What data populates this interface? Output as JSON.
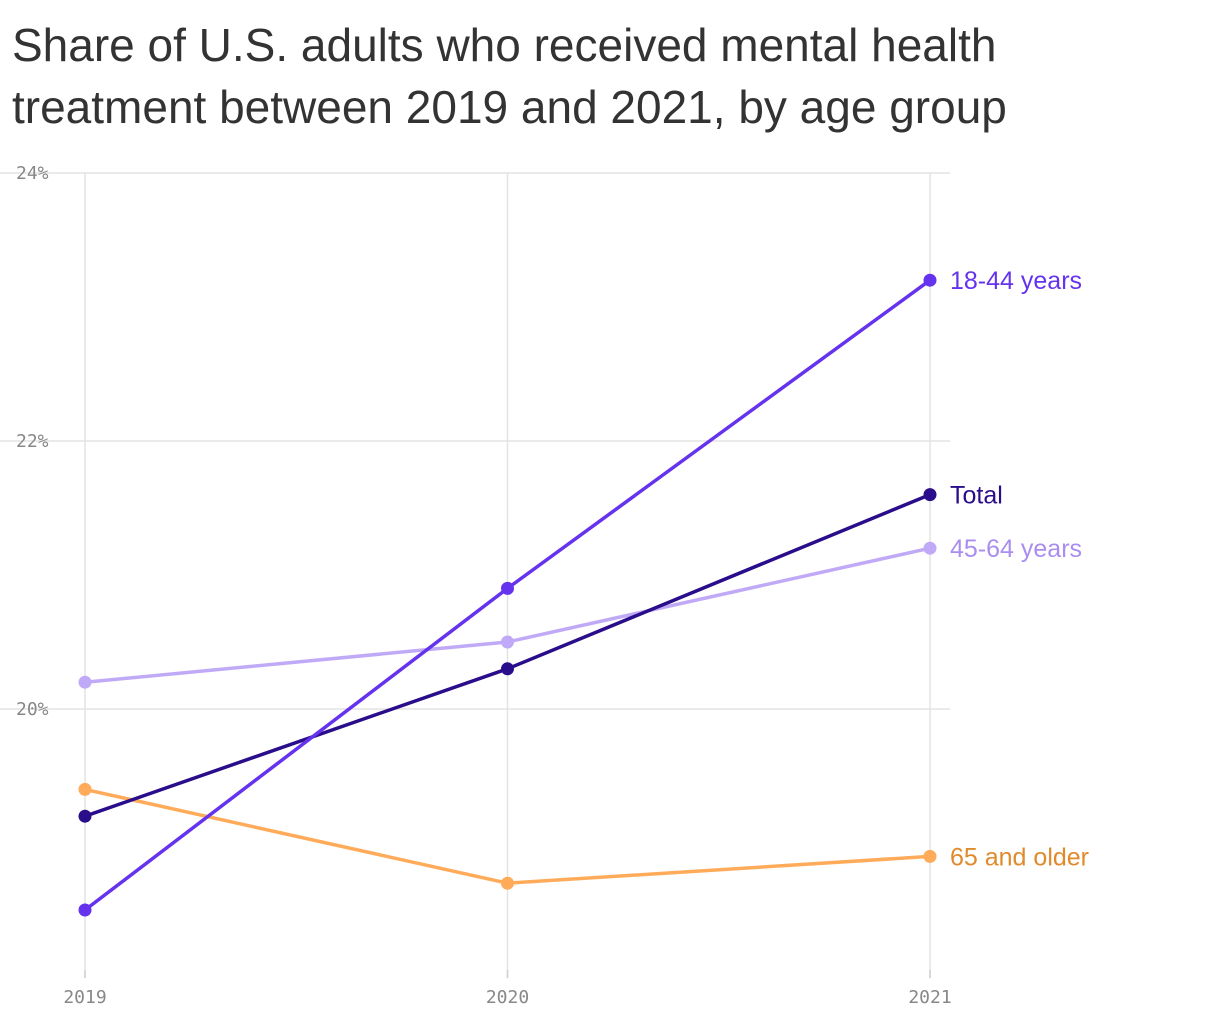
{
  "chart_data": {
    "type": "line",
    "title": "Share of U.S. adults who received mental health treatment between 2019 and 2021, by age group",
    "xlabel": "",
    "ylabel": "",
    "x": [
      "2019",
      "2020",
      "2021"
    ],
    "yticks": [
      "24%",
      "22%",
      "20%"
    ],
    "ytick_values": [
      24,
      22,
      20
    ],
    "ylim": [
      18,
      24
    ],
    "grid": true,
    "legend": "direct labels at line ends (right)",
    "series": [
      {
        "name": "18-44 years",
        "values": [
          18.5,
          20.9,
          23.2
        ],
        "color": "#6533ee",
        "label_color": "#6533ee"
      },
      {
        "name": "Total",
        "values": [
          19.2,
          20.3,
          21.6
        ],
        "color": "#2a0d8a",
        "label_color": "#2a0d8a"
      },
      {
        "name": "45-64 years",
        "values": [
          20.2,
          20.5,
          21.2
        ],
        "color": "#c0aaf7",
        "label_color": "#a98ef0"
      },
      {
        "name": "65 and older",
        "values": [
          19.4,
          18.7,
          18.9
        ],
        "color": "#ffab5a",
        "label_color": "#e08a2c"
      }
    ]
  }
}
